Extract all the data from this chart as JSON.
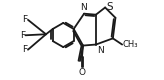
{
  "bg_color": "#ffffff",
  "line_color": "#1a1a1a",
  "line_width": 1.3,
  "font_size": 6.5,
  "fig_width": 1.64,
  "fig_height": 0.8,
  "xlim": [
    -0.55,
    1.75
  ],
  "ylim": [
    -0.52,
    0.88
  ]
}
